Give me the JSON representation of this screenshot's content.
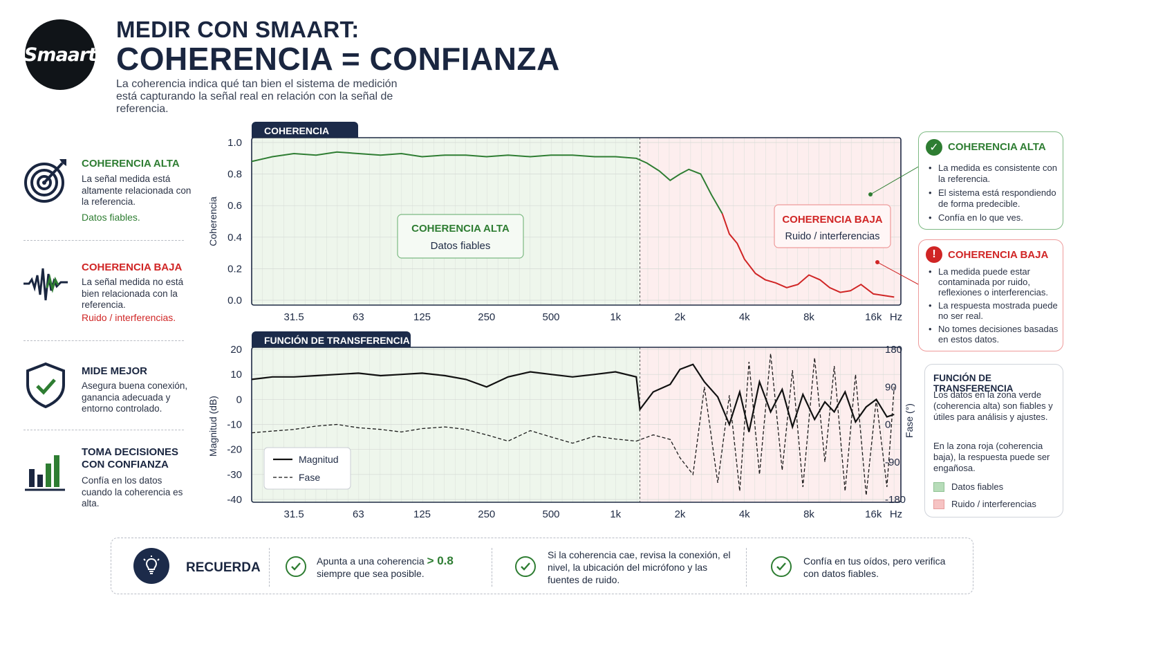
{
  "header": {
    "logo_text": "Smaart",
    "title_line1": "MEDIR CON SMAART:",
    "title_line2": "COHERENCIA = CONFIANZA",
    "intro": "La coherencia indica qué tan bien el sistema de medición está capturando la señal real en relación con la señal de referencia."
  },
  "left_rail": [
    {
      "icon": "target-icon",
      "title": "COHERENCIA ALTA",
      "body": "La señal medida está altamente relacionada con la referencia.",
      "note": "Datos fiables."
    },
    {
      "icon": "noise-wave-icon",
      "title": "COHERENCIA BAJA",
      "body": "La señal medida no está bien relacionada con la referencia.",
      "note": "Ruido / interferencias."
    },
    {
      "icon": "shield-check-icon",
      "title": "MIDE MEJOR",
      "body": "Asegura buena conexión, ganancia adecuada y entorno controlado.",
      "note": ""
    },
    {
      "icon": "bar-chart-icon",
      "title": "TOMA DECISIONES CON CONFIANZA",
      "body": "Confía en los datos cuando la coherencia es alta.",
      "note": ""
    }
  ],
  "colors": {
    "navy": "#1c2b4a",
    "good": "#2e7d32",
    "bad": "#d02525",
    "good_zone": "#eef6ec",
    "bad_zone": "#fdeeee"
  },
  "chart_data": [
    {
      "type": "line",
      "title": "COHERENCIA",
      "ylabel": "Coherencia",
      "xlabel": "",
      "x_scale": "log",
      "x_ticks": [
        "31.5",
        "63",
        "125",
        "250",
        "500",
        "1k",
        "2k",
        "4k",
        "8k",
        "16k",
        "Hz"
      ],
      "ylim": [
        0.0,
        1.0
      ],
      "y_ticks": [
        "0.0",
        "0.2",
        "0.4",
        "0.6",
        "0.8",
        "1.0"
      ],
      "zones": [
        {
          "label": "COHERENCIA ALTA",
          "sub": "Datos fiables"
        },
        {
          "label": "COHERENCIA BAJA",
          "sub": "Ruido / interferencias"
        }
      ],
      "series": [
        {
          "x": [
            20,
            25,
            31.5,
            40,
            50,
            63,
            80,
            100,
            125,
            160,
            200,
            250,
            315,
            400,
            500,
            630,
            800,
            1000,
            1250,
            1400,
            1600,
            1800,
            2000,
            2200,
            2500,
            2800,
            3150,
            3400,
            3700,
            4000,
            4500,
            5000,
            5600,
            6300,
            7100,
            8000,
            9000,
            10000,
            11200,
            12500,
            14000,
            16000,
            18000,
            20000
          ],
          "values": [
            0.88,
            0.91,
            0.93,
            0.92,
            0.94,
            0.93,
            0.92,
            0.93,
            0.91,
            0.92,
            0.92,
            0.91,
            0.92,
            0.91,
            0.92,
            0.92,
            0.91,
            0.91,
            0.9,
            0.87,
            0.82,
            0.76,
            0.8,
            0.83,
            0.8,
            0.67,
            0.55,
            0.42,
            0.36,
            0.26,
            0.17,
            0.13,
            0.11,
            0.08,
            0.1,
            0.16,
            0.13,
            0.08,
            0.05,
            0.06,
            0.1,
            0.04,
            0.03,
            0.02
          ]
        }
      ]
    },
    {
      "type": "line",
      "title": "FUNCIÓN DE TRANSFERENCIA",
      "ylabel": "Magnitud (dB)",
      "y2label": "Fase (°)",
      "x_scale": "log",
      "x_ticks": [
        "31.5",
        "63",
        "125",
        "250",
        "500",
        "1k",
        "2k",
        "4k",
        "8k",
        "16k",
        "Hz"
      ],
      "ylim": [
        -40,
        20
      ],
      "y_ticks": [
        "20",
        "10",
        "0",
        "-10",
        "-20",
        "-30",
        "-40"
      ],
      "y2lim": [
        -180,
        180
      ],
      "y2_ticks": [
        "180",
        "90",
        "0",
        "-90",
        "-180"
      ],
      "series": [
        {
          "name": "Magnitud",
          "x": [
            20,
            25,
            31.5,
            40,
            50,
            63,
            80,
            100,
            125,
            160,
            200,
            250,
            315,
            400,
            500,
            630,
            800,
            1000,
            1250,
            1300,
            1500,
            1800,
            2000,
            2300,
            2600,
            3000,
            3400,
            3800,
            4200,
            4700,
            5300,
            6000,
            6700,
            7500,
            8500,
            9500,
            10500,
            11800,
            13200,
            14800,
            16500,
            18500,
            20000
          ],
          "values": [
            8,
            9,
            9,
            9.5,
            10,
            10.5,
            9.5,
            10,
            10.5,
            9.5,
            8,
            5,
            9,
            11,
            10,
            9,
            10,
            11,
            9,
            -4,
            3,
            6,
            12,
            14,
            7,
            1,
            -10,
            3,
            -13,
            7,
            -5,
            4,
            -11,
            2,
            -8,
            -1,
            -5,
            3,
            -9,
            -3,
            0,
            -7,
            -6
          ]
        },
        {
          "name": "Fase",
          "x": [
            20,
            25,
            31.5,
            40,
            50,
            63,
            80,
            100,
            125,
            160,
            200,
            250,
            315,
            400,
            500,
            630,
            800,
            1000,
            1250,
            1500,
            1800,
            2000,
            2300,
            2600,
            3000,
            3400,
            3800,
            4200,
            4700,
            5300,
            6000,
            6700,
            7500,
            8500,
            9500,
            10500,
            11800,
            13200,
            14800,
            16500,
            18500,
            20000
          ],
          "values": [
            -20,
            -16,
            -12,
            -4,
            0,
            -8,
            -12,
            -18,
            -10,
            -6,
            -12,
            -25,
            -40,
            -15,
            -30,
            -45,
            -28,
            -35,
            -40,
            -25,
            -36,
            -80,
            -120,
            90,
            -140,
            70,
            -160,
            150,
            -120,
            170,
            -110,
            130,
            -150,
            160,
            -90,
            140,
            -160,
            120,
            -170,
            60,
            -150,
            90
          ]
        }
      ],
      "legend": [
        "Magnitud",
        "Fase"
      ]
    }
  ],
  "cards": {
    "high": {
      "title": "COHERENCIA ALTA",
      "items": [
        "La medida es consistente con la referencia.",
        "El sistema está respondiendo de forma predecible.",
        "Confía en lo que ves."
      ]
    },
    "low": {
      "title": "COHERENCIA BAJA",
      "items": [
        "La medida puede estar contaminada por ruido, reflexiones o interferencias.",
        "La respuesta mostrada puede no ser real.",
        "No tomes decisiones basadas en estos datos."
      ]
    },
    "tf": {
      "title": "FUNCIÓN DE TRANSFERENCIA",
      "p1": "Los datos en la zona verde (coherencia alta) son fiables y útiles para análisis y ajustes.",
      "p2": "En la zona roja (coherencia baja), la respuesta puede ser engañosa.",
      "legend_good": "Datos fiables",
      "legend_bad": "Ruido / interferencias"
    }
  },
  "remember": {
    "label": "RECUERDA",
    "tip1_a": "Apunta a una coherencia",
    "tip1_value": "> 0.8",
    "tip1_b": "siempre que sea posible.",
    "tip2": "Si la coherencia cae, revisa la conexión, el nivel, la ubicación del micrófono y las fuentes de ruido.",
    "tip3": "Confía en tus oídos, pero verifica con datos fiables."
  }
}
